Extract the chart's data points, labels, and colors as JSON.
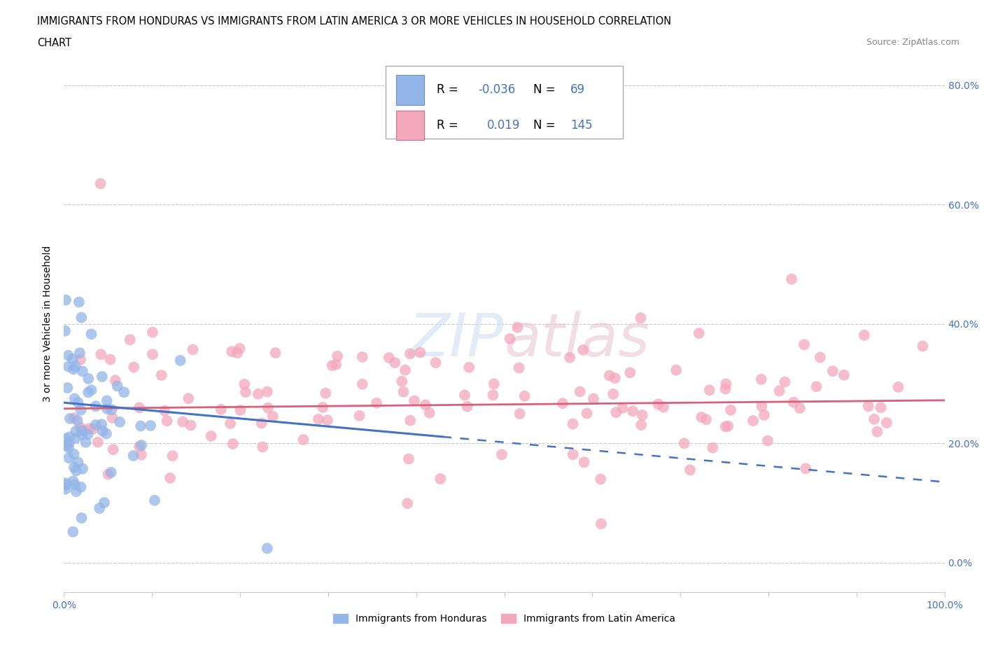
{
  "title_line1": "IMMIGRANTS FROM HONDURAS VS IMMIGRANTS FROM LATIN AMERICA 3 OR MORE VEHICLES IN HOUSEHOLD CORRELATION",
  "title_line2": "CHART",
  "source": "Source: ZipAtlas.com",
  "ylabel": "3 or more Vehicles in Household",
  "xlim": [
    0.0,
    1.0
  ],
  "ylim": [
    -0.05,
    0.85
  ],
  "yticks": [
    0.0,
    0.2,
    0.4,
    0.6,
    0.8
  ],
  "yticklabels": [
    "0.0%",
    "20.0%",
    "40.0%",
    "60.0%",
    "80.0%"
  ],
  "honduras_color": "#93b5e8",
  "latin_color": "#f4a8bc",
  "honduras_line_color": "#4472c4",
  "latin_line_color": "#d9607a",
  "R_honduras": -0.036,
  "N_honduras": 69,
  "R_latin": 0.019,
  "N_latin": 145,
  "legend_label_1": "Immigrants from Honduras",
  "legend_label_2": "Immigrants from Latin America",
  "watermark": "ZIPatlas",
  "background_color": "#ffffff",
  "grid_color": "#c8c8c8",
  "tick_color": "#4472c4",
  "title_color": "#000000"
}
